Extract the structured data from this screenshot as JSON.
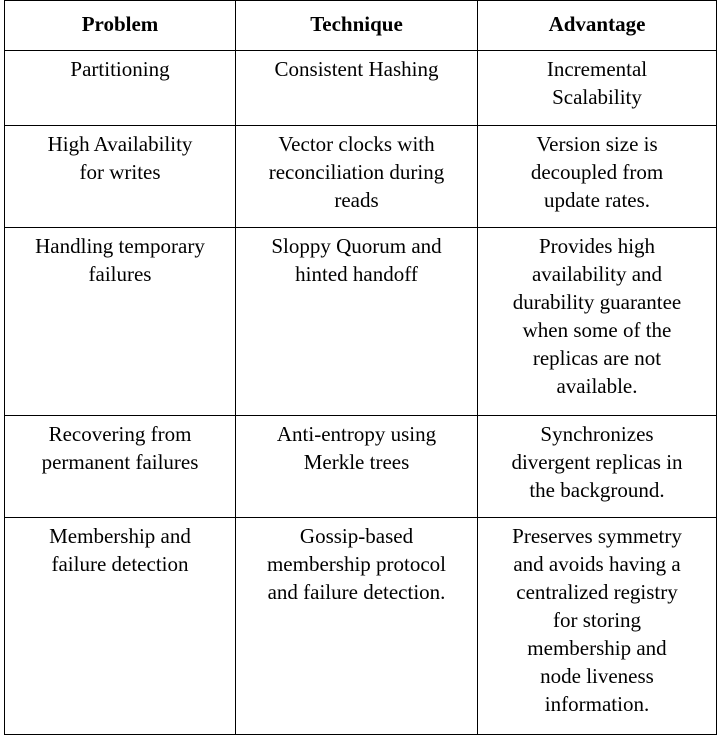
{
  "table": {
    "headers": [
      "Problem",
      "Technique",
      "Advantage"
    ],
    "rows": [
      [
        "Partitioning",
        "Consistent Hashing",
        "Incremental\nScalability"
      ],
      [
        "High Availability\nfor writes",
        "Vector clocks with\nreconciliation during\nreads",
        "Version size is\ndecoupled from\nupdate rates."
      ],
      [
        "Handling temporary\nfailures",
        "Sloppy Quorum and\nhinted handoff",
        "Provides high\navailability and\ndurability guarantee\nwhen some of the\nreplicas are not\navailable."
      ],
      [
        "Recovering from\npermanent failures",
        "Anti-entropy using\nMerkle trees",
        "Synchronizes\ndivergent replicas in\nthe background."
      ],
      [
        "Membership and\nfailure detection",
        "Gossip-based\nmembership protocol\nand failure detection.",
        "Preserves symmetry\nand avoids having a\ncentralized registry\nfor storing\nmembership and\nnode liveness\ninformation."
      ]
    ]
  }
}
